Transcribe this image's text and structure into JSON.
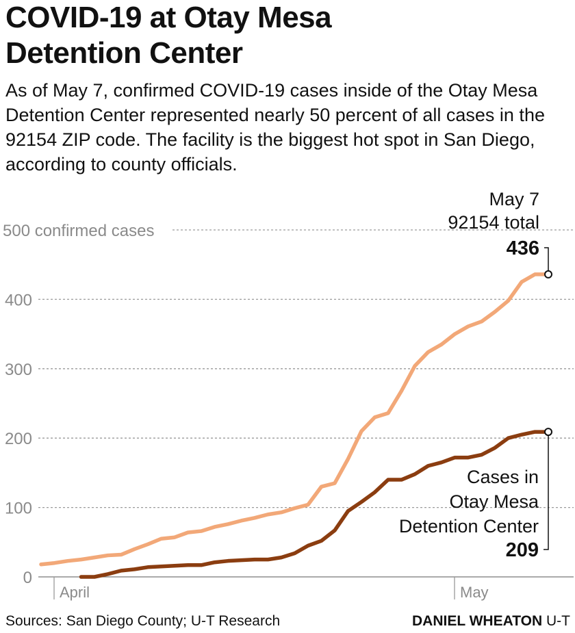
{
  "header": {
    "title_line1": "COVID-19 at Otay Mesa",
    "title_line2": "Detention Center",
    "subtitle": "As of May 7, confirmed COVID-19 cases inside of the Otay Mesa Detention Center represented nearly 50 percent of all cases in the 92154 ZIP code. The facility is the biggest hot spot in San Diego, according to county officials."
  },
  "footer": {
    "sources": "Sources: San Diego County; U-T Research",
    "author": "DANIEL WHEATON",
    "outlet": "U-T"
  },
  "colors": {
    "zip_series": "#f2a878",
    "detention_series": "#8b3d10",
    "grid": "#9a9a9a",
    "tick_text": "#8a8a8a"
  },
  "chart_data": {
    "type": "line",
    "ylim": [
      0,
      500
    ],
    "y_ticks": [
      0,
      100,
      200,
      300,
      400,
      500
    ],
    "y_tick_labels": [
      "0",
      "100",
      "200",
      "300",
      "400",
      "500 confirmed cases"
    ],
    "x_ticks": [
      "April",
      "May"
    ],
    "x": [
      "Mar 30",
      "Mar 31",
      "Apr 1",
      "Apr 2",
      "Apr 3",
      "Apr 4",
      "Apr 5",
      "Apr 6",
      "Apr 7",
      "Apr 8",
      "Apr 9",
      "Apr 10",
      "Apr 11",
      "Apr 12",
      "Apr 13",
      "Apr 14",
      "Apr 15",
      "Apr 16",
      "Apr 17",
      "Apr 18",
      "Apr 19",
      "Apr 20",
      "Apr 21",
      "Apr 22",
      "Apr 23",
      "Apr 24",
      "Apr 25",
      "Apr 26",
      "Apr 27",
      "Apr 28",
      "Apr 29",
      "Apr 30",
      "May 1",
      "May 2",
      "May 3",
      "May 4",
      "May 5",
      "May 6",
      "May 7"
    ],
    "series": [
      {
        "key": "zip",
        "values": [
          18,
          20,
          23,
          25,
          28,
          31,
          32,
          40,
          47,
          55,
          57,
          64,
          66,
          72,
          76,
          81,
          85,
          90,
          93,
          99,
          104,
          130,
          135,
          170,
          210,
          230,
          236,
          268,
          304,
          324,
          335,
          350,
          361,
          368,
          382,
          398,
          425,
          436,
          436
        ]
      },
      {
        "key": "detention",
        "values": [
          null,
          null,
          null,
          0,
          0,
          4,
          9,
          11,
          14,
          15,
          16,
          17,
          17,
          21,
          23,
          24,
          25,
          25,
          28,
          34,
          45,
          52,
          67,
          95,
          108,
          122,
          140,
          140,
          148,
          160,
          165,
          172,
          172,
          176,
          186,
          200,
          205,
          209,
          209
        ]
      }
    ],
    "annotations": {
      "zip": {
        "date": "May 7",
        "label": "92154 total",
        "value": "436"
      },
      "detention": {
        "label_line1": "Cases in",
        "label_line2": "Otay Mesa",
        "label_line3": "Detention Center",
        "value": "209"
      }
    }
  }
}
